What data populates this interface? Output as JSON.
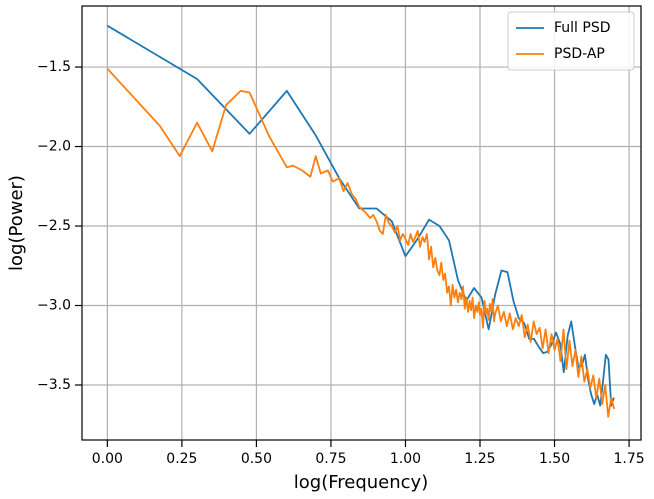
{
  "chart_data": {
    "type": "line",
    "xlabel": "log(Frequency)",
    "ylabel": "log(Power)",
    "xlim": [
      -0.085,
      1.79
    ],
    "ylim": [
      -3.846,
      -1.116
    ],
    "xticks": [
      {
        "value": 0,
        "label": "0.00"
      },
      {
        "value": 0.25,
        "label": "0.25"
      },
      {
        "value": 0.5,
        "label": "0.50"
      },
      {
        "value": 0.75,
        "label": "0.75"
      },
      {
        "value": 1,
        "label": "1.00"
      },
      {
        "value": 1.25,
        "label": "1.25"
      },
      {
        "value": 1.5,
        "label": "1.50"
      },
      {
        "value": 1.75,
        "label": "1.75"
      }
    ],
    "yticks": [
      {
        "value": -3.5,
        "label": "−3.5"
      },
      {
        "value": -3,
        "label": "−3.0"
      },
      {
        "value": -2.5,
        "label": "−2.5"
      },
      {
        "value": -2,
        "label": "−2.0"
      },
      {
        "value": -1.5,
        "label": "−1.5"
      }
    ],
    "grid": true,
    "legend": "upper right",
    "series": [
      {
        "name": "Full PSD",
        "color": "#1f77b4",
        "x": [
          0,
          0.301,
          0.477,
          0.602,
          0.699,
          0.778,
          0.845,
          0.903,
          0.954,
          1.0,
          1.041,
          1.079,
          1.114,
          1.146,
          1.176,
          1.204,
          1.23,
          1.255,
          1.279,
          1.301,
          1.322,
          1.342,
          1.362,
          1.38,
          1.398,
          1.415,
          1.431,
          1.447,
          1.462,
          1.477,
          1.491,
          1.505,
          1.519,
          1.531,
          1.544,
          1.556,
          1.568,
          1.58,
          1.591,
          1.602,
          1.613,
          1.623,
          1.633,
          1.643,
          1.653,
          1.663,
          1.672,
          1.681,
          1.69,
          1.699
        ],
        "values": [
          -1.24,
          -1.575,
          -1.92,
          -1.65,
          -1.93,
          -2.2,
          -2.39,
          -2.39,
          -2.47,
          -2.69,
          -2.58,
          -2.46,
          -2.5,
          -2.59,
          -2.84,
          -2.97,
          -2.89,
          -2.95,
          -3.15,
          -2.93,
          -2.78,
          -2.79,
          -2.97,
          -3.08,
          -3.11,
          -3.21,
          -3.21,
          -3.26,
          -3.3,
          -3.29,
          -3.24,
          -3.17,
          -3.24,
          -3.42,
          -3.19,
          -3.1,
          -3.25,
          -3.39,
          -3.38,
          -3.31,
          -3.47,
          -3.56,
          -3.62,
          -3.56,
          -3.63,
          -3.47,
          -3.31,
          -3.34,
          -3.63,
          -3.58
        ]
      },
      {
        "name": "PSD-AP",
        "color": "#ff7f0e",
        "x": [
          0,
          0.176,
          0.243,
          0.301,
          0.352,
          0.398,
          0.447,
          0.477,
          0.544,
          0.602,
          0.623,
          0.653,
          0.681,
          0.699,
          0.716,
          0.74,
          0.756,
          0.778,
          0.792,
          0.806,
          0.82,
          0.833,
          0.845,
          0.857,
          0.869,
          0.881,
          0.892,
          0.903,
          0.914,
          0.924,
          0.934,
          0.944,
          0.954,
          0.964,
          0.973,
          0.982,
          0.991,
          1.0,
          1.009,
          1.017,
          1.025,
          1.033,
          1.041,
          1.049,
          1.057,
          1.064,
          1.072,
          1.079,
          1.086,
          1.093,
          1.1,
          1.107,
          1.114,
          1.12,
          1.127,
          1.133,
          1.14,
          1.146,
          1.152,
          1.158,
          1.164,
          1.17,
          1.176,
          1.182,
          1.188,
          1.193,
          1.199,
          1.204,
          1.21,
          1.215,
          1.22,
          1.225,
          1.23,
          1.236,
          1.241,
          1.246,
          1.25,
          1.255,
          1.26,
          1.265,
          1.27,
          1.274,
          1.279,
          1.283,
          1.288,
          1.292,
          1.297,
          1.301,
          1.31,
          1.32,
          1.33,
          1.34,
          1.35,
          1.36,
          1.37,
          1.38,
          1.39,
          1.4,
          1.41,
          1.42,
          1.43,
          1.44,
          1.45,
          1.46,
          1.47,
          1.48,
          1.49,
          1.5,
          1.51,
          1.52,
          1.53,
          1.54,
          1.55,
          1.56,
          1.57,
          1.58,
          1.59,
          1.6,
          1.61,
          1.62,
          1.63,
          1.64,
          1.65,
          1.66,
          1.67,
          1.68,
          1.69,
          1.7
        ],
        "values": [
          -1.51,
          -1.87,
          -2.06,
          -1.85,
          -2.03,
          -1.74,
          -1.65,
          -1.66,
          -1.94,
          -2.13,
          -2.12,
          -2.15,
          -2.19,
          -2.06,
          -2.17,
          -2.15,
          -2.22,
          -2.2,
          -2.28,
          -2.23,
          -2.3,
          -2.33,
          -2.38,
          -2.4,
          -2.42,
          -2.45,
          -2.43,
          -2.47,
          -2.53,
          -2.55,
          -2.43,
          -2.48,
          -2.5,
          -2.54,
          -2.5,
          -2.59,
          -2.55,
          -2.58,
          -2.62,
          -2.55,
          -2.6,
          -2.57,
          -2.53,
          -2.63,
          -2.57,
          -2.6,
          -2.55,
          -2.71,
          -2.63,
          -2.76,
          -2.7,
          -2.78,
          -2.81,
          -2.73,
          -2.84,
          -2.8,
          -2.92,
          -2.88,
          -3.0,
          -2.87,
          -2.95,
          -2.9,
          -2.98,
          -2.92,
          -2.96,
          -2.88,
          -3.02,
          -2.95,
          -3.04,
          -2.97,
          -3.03,
          -2.95,
          -3.08,
          -3.0,
          -3.04,
          -2.98,
          -3.06,
          -3.02,
          -3.14,
          -2.97,
          -3.05,
          -3.02,
          -3.09,
          -2.99,
          -3.04,
          -2.96,
          -3.1,
          -3.05,
          -3.0,
          -3.1,
          -3.04,
          -3.13,
          -3.05,
          -3.15,
          -3.08,
          -3.13,
          -3.06,
          -3.2,
          -3.12,
          -3.23,
          -3.1,
          -3.18,
          -3.14,
          -3.27,
          -3.15,
          -3.3,
          -3.18,
          -3.28,
          -3.21,
          -3.35,
          -3.15,
          -3.4,
          -3.22,
          -3.38,
          -3.28,
          -3.45,
          -3.32,
          -3.48,
          -3.4,
          -3.52,
          -3.44,
          -3.58,
          -3.46,
          -3.62,
          -3.5,
          -3.7,
          -3.58,
          -3.65
        ]
      }
    ]
  }
}
